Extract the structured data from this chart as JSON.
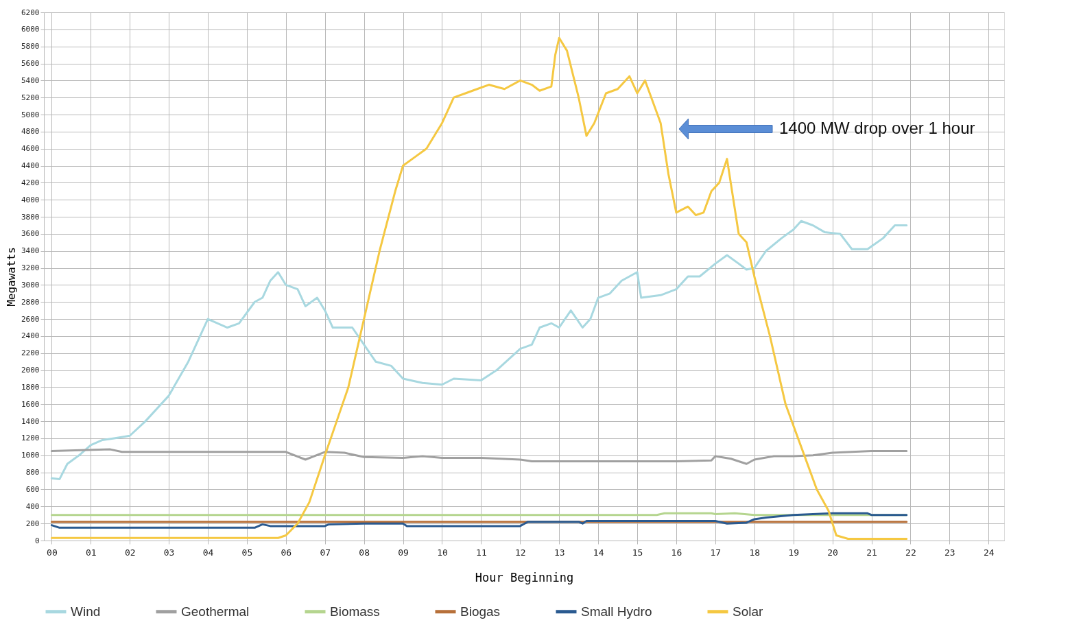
{
  "chart_data": {
    "type": "line",
    "xlabel": "Hour Beginning",
    "ylabel": "Megawatts",
    "xlim": [
      -0.2,
      24.4
    ],
    "ylim": [
      0,
      6200
    ],
    "xticks": [
      {
        "value": 0,
        "label": "00"
      },
      {
        "value": 1,
        "label": "01"
      },
      {
        "value": 2,
        "label": "02"
      },
      {
        "value": 3,
        "label": "03"
      },
      {
        "value": 4,
        "label": "04"
      },
      {
        "value": 5,
        "label": "05"
      },
      {
        "value": 6,
        "label": "06"
      },
      {
        "value": 7,
        "label": "07"
      },
      {
        "value": 8,
        "label": "08"
      },
      {
        "value": 9,
        "label": "09"
      },
      {
        "value": 10,
        "label": "10"
      },
      {
        "value": 11,
        "label": "11"
      },
      {
        "value": 12,
        "label": "12"
      },
      {
        "value": 13,
        "label": "13"
      },
      {
        "value": 14,
        "label": "14"
      },
      {
        "value": 15,
        "label": "15"
      },
      {
        "value": 16,
        "label": "16"
      },
      {
        "value": 17,
        "label": "17"
      },
      {
        "value": 18,
        "label": "18"
      },
      {
        "value": 19,
        "label": "19"
      },
      {
        "value": 20,
        "label": "20"
      },
      {
        "value": 21,
        "label": "21"
      },
      {
        "value": 22,
        "label": "22"
      },
      {
        "value": 23,
        "label": "23"
      },
      {
        "value": 24,
        "label": "24"
      }
    ],
    "yticks": [
      0,
      200,
      400,
      600,
      800,
      1000,
      1200,
      1400,
      1600,
      1800,
      2000,
      2200,
      2400,
      2600,
      2800,
      3000,
      3200,
      3400,
      3600,
      3800,
      4000,
      4200,
      4400,
      4600,
      4800,
      5000,
      5200,
      5400,
      5600,
      5800,
      6000,
      6200
    ],
    "grid": true,
    "legend": "bottom",
    "marker": "none",
    "line_style": "solid",
    "annotations": [
      "1400 MW drop over 1 hour"
    ],
    "series": [
      {
        "name": "Wind",
        "color": "#a8d8e0",
        "x": [
          0,
          0.2,
          0.4,
          0.7,
          1.0,
          1.3,
          1.6,
          2.0,
          2.4,
          3.0,
          3.5,
          4.0,
          4.5,
          4.8,
          5.2,
          5.4,
          5.6,
          5.8,
          6.0,
          6.3,
          6.5,
          6.8,
          7.0,
          7.2,
          7.5,
          7.7,
          8.0,
          8.3,
          8.7,
          9.0,
          9.5,
          10.0,
          10.3,
          11.0,
          11.4,
          12.0,
          12.3,
          12.5,
          12.8,
          13.0,
          13.3,
          13.6,
          13.8,
          14.0,
          14.3,
          14.6,
          15.0,
          15.1,
          15.6,
          16.0,
          16.3,
          16.6,
          17.0,
          17.3,
          17.6,
          17.8,
          18.0,
          18.3,
          18.7,
          19.0,
          19.2,
          19.5,
          19.8,
          20.2,
          20.5,
          20.9,
          21.3,
          21.6,
          21.9
        ],
        "values": [
          730,
          720,
          900,
          1000,
          1120,
          1180,
          1200,
          1230,
          1400,
          1700,
          2100,
          2600,
          2500,
          2550,
          2800,
          2850,
          3050,
          3150,
          3000,
          2950,
          2750,
          2850,
          2700,
          2500,
          2500,
          2500,
          2300,
          2100,
          2050,
          1900,
          1850,
          1830,
          1900,
          1880,
          2000,
          2250,
          2300,
          2500,
          2550,
          2500,
          2700,
          2500,
          2600,
          2850,
          2900,
          3050,
          3150,
          2850,
          2880,
          2950,
          3100,
          3100,
          3250,
          3350,
          3250,
          3180,
          3200,
          3400,
          3550,
          3650,
          3750,
          3700,
          3620,
          3600,
          3420,
          3420,
          3550,
          3700,
          3700
        ]
      },
      {
        "name": "Geothermal",
        "color": "#a0a0a0",
        "x": [
          0,
          1.5,
          1.8,
          6.0,
          6.5,
          7.0,
          7.5,
          8.0,
          9.0,
          9.5,
          10.0,
          11.0,
          12.0,
          12.3,
          16.0,
          16.9,
          17.0,
          17.4,
          17.8,
          18.0,
          18.5,
          19.0,
          19.5,
          20.0,
          20.5,
          21.0,
          21.9
        ],
        "values": [
          1050,
          1070,
          1040,
          1040,
          950,
          1040,
          1030,
          980,
          970,
          990,
          970,
          970,
          950,
          930,
          930,
          940,
          990,
          960,
          900,
          950,
          990,
          990,
          1000,
          1030,
          1040,
          1050,
          1050
        ]
      },
      {
        "name": "Biomass",
        "color": "#b5d58f",
        "x": [
          0,
          15.5,
          15.7,
          16.9,
          17.0,
          17.5,
          18.0,
          21.9
        ],
        "values": [
          300,
          300,
          320,
          320,
          310,
          320,
          300,
          300
        ]
      },
      {
        "name": "Biogas",
        "color": "#b7703a",
        "x": [
          0,
          21.9
        ],
        "values": [
          220,
          220
        ]
      },
      {
        "name": "Small Hydro",
        "color": "#2a5a90",
        "x": [
          0,
          0.2,
          5.2,
          5.4,
          5.6,
          6.0,
          7.0,
          7.1,
          8.0,
          9.0,
          9.1,
          11.0,
          12.0,
          12.2,
          13.5,
          13.6,
          13.7,
          17.0,
          17.3,
          17.8,
          18.0,
          18.3,
          19.0,
          20.0,
          20.9,
          21.0,
          21.9
        ],
        "values": [
          180,
          150,
          150,
          190,
          170,
          170,
          170,
          190,
          200,
          200,
          170,
          170,
          170,
          220,
          220,
          200,
          230,
          230,
          200,
          210,
          250,
          270,
          300,
          320,
          320,
          300,
          300
        ]
      },
      {
        "name": "Solar",
        "color": "#f5c842",
        "x": [
          0,
          5.8,
          6.0,
          6.3,
          6.6,
          7.0,
          7.3,
          7.6,
          8.0,
          8.4,
          8.8,
          9.0,
          9.3,
          9.6,
          10.0,
          10.3,
          10.6,
          10.9,
          11.2,
          11.6,
          12.0,
          12.3,
          12.5,
          12.8,
          12.9,
          13.0,
          13.2,
          13.5,
          13.7,
          13.9,
          14.2,
          14.5,
          14.8,
          15.0,
          15.2,
          15.6,
          15.8,
          16.0,
          16.3,
          16.5,
          16.7,
          16.9,
          17.1,
          17.3,
          17.6,
          17.8,
          18.0,
          18.4,
          18.8,
          19.2,
          19.6,
          19.9,
          20.1,
          20.4,
          21.9
        ],
        "values": [
          30,
          30,
          60,
          200,
          450,
          1000,
          1400,
          1800,
          2600,
          3400,
          4100,
          4400,
          4500,
          4600,
          4900,
          5200,
          5250,
          5300,
          5350,
          5300,
          5400,
          5350,
          5280,
          5330,
          5700,
          5900,
          5750,
          5200,
          4750,
          4900,
          5250,
          5300,
          5450,
          5250,
          5400,
          4900,
          4300,
          3850,
          3920,
          3820,
          3850,
          4100,
          4200,
          4480,
          3600,
          3500,
          3100,
          2400,
          1600,
          1100,
          600,
          350,
          60,
          20,
          20
        ]
      }
    ]
  }
}
